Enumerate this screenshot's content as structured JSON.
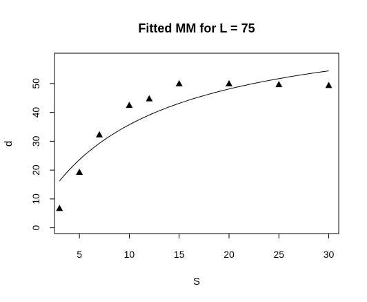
{
  "chart_data": {
    "type": "scatter",
    "title": "Fitted MM for L = 75",
    "xlabel": "S",
    "ylabel": "d",
    "xlim": [
      2.5,
      31
    ],
    "ylim": [
      -2,
      60.5
    ],
    "xticks": [
      5,
      10,
      15,
      20,
      25,
      30
    ],
    "yticks": [
      0,
      10,
      20,
      30,
      40,
      50
    ],
    "grid": false,
    "legend": "none",
    "colors": {
      "points": "#000000",
      "curve": "#000000",
      "frame": "#000000"
    },
    "points": {
      "marker": "filled-triangle",
      "x": [
        3,
        5,
        7,
        10,
        12,
        15,
        20,
        25,
        30
      ],
      "y": [
        6.8,
        19.3,
        32.3,
        42.5,
        44.8,
        50.0,
        50.0,
        49.7,
        49.4
      ]
    },
    "fitted_curve": {
      "model": "Michaelis-Menten",
      "vmax": 73.6,
      "k": 10.6,
      "x_range": [
        3,
        30
      ]
    }
  }
}
